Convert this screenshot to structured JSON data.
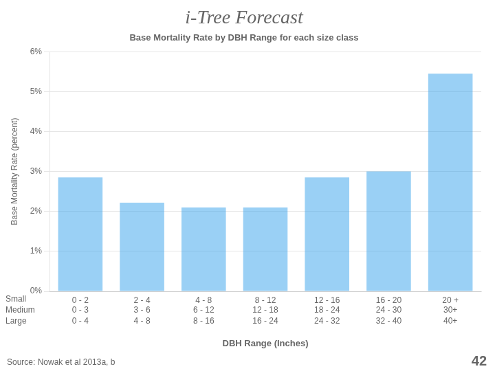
{
  "chart_data": {
    "type": "bar",
    "title": "i-Tree Forecast",
    "subtitle": "Base Mortality Rate by DBH Range for each size class",
    "categories": [
      "0 - 2",
      "2 - 4",
      "4 - 8",
      "8 - 12",
      "12 - 16",
      "16 - 20",
      "20 +"
    ],
    "values": [
      2.85,
      2.22,
      2.1,
      2.1,
      2.85,
      3.0,
      5.45
    ],
    "ylabel": "Base Mortality Rate (percent)",
    "xlabel": "DBH Range (Inches)",
    "ylim": [
      0,
      6
    ],
    "yticks": [
      {
        "value": 0,
        "label": "0%"
      },
      {
        "value": 1,
        "label": "1%"
      },
      {
        "value": 2,
        "label": "2%"
      },
      {
        "value": 3,
        "label": "3%"
      },
      {
        "value": 4,
        "label": "4%"
      },
      {
        "value": 5,
        "label": "5%"
      },
      {
        "value": 6,
        "label": "6%"
      }
    ],
    "grid": true,
    "annotations": [
      {
        "name": "Small"
      },
      {
        "name": "Medium",
        "labels": [
          "0 - 3",
          "3 - 6",
          "6 - 12",
          "12 - 18",
          "18 - 24",
          "24 - 30",
          "30+"
        ]
      },
      {
        "name": "Large",
        "labels": [
          "0 - 4",
          "4 - 8",
          "8 - 16",
          "16 - 24",
          "24 - 32",
          "32 - 40",
          "40+"
        ]
      },
      "Source: Nowak et al 2013a, b",
      "42"
    ]
  }
}
